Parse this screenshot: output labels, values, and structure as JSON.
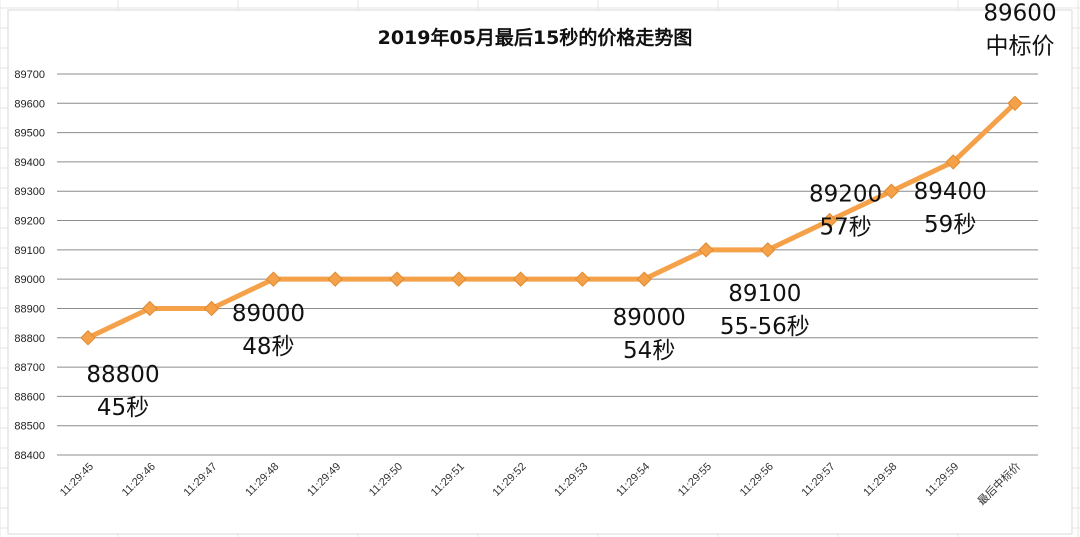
{
  "chart_data": {
    "type": "line",
    "title": "2019年05月最后15秒的价格走势图",
    "xlabel": "",
    "ylabel": "",
    "categories": [
      "11:29:45",
      "11:29:46",
      "11:29:47",
      "11:29:48",
      "11:29:49",
      "11:29:50",
      "11:29:51",
      "11:29:52",
      "11:29:53",
      "11:29:54",
      "11:29:55",
      "11:29:56",
      "11:29:57",
      "11:29:58",
      "11:29:59",
      "最后中标价"
    ],
    "series": [
      {
        "values": [
          88800,
          88900,
          88900,
          89000,
          89000,
          89000,
          89000,
          89000,
          89000,
          89000,
          89100,
          89100,
          89200,
          89300,
          89400,
          89600
        ]
      }
    ],
    "ylim": [
      88400,
      89700
    ],
    "ytick_labels": [
      "88400",
      "88500",
      "88600",
      "88700",
      "88800",
      "88900",
      "89000",
      "89100",
      "89200",
      "89300",
      "89400",
      "89500",
      "89600",
      "89700"
    ],
    "grid": true,
    "legend": "none",
    "line_color": "#F5A14A",
    "marker_color": "#F5A14A",
    "grid_color": "#8C8C8C",
    "annotations": [
      {
        "line1": "88800",
        "line2": "45秒",
        "category_index": 0,
        "value": 88800
      },
      {
        "line1": "89000",
        "line2": "48秒",
        "category_index": 3,
        "value": 89000
      },
      {
        "line1": "89000",
        "line2": "54秒",
        "category_index": 9,
        "value": 89000
      },
      {
        "line1": "89100",
        "line2": "55-56秒",
        "category_index": 11,
        "value": 89100
      },
      {
        "line1": "89200",
        "line2": "57秒",
        "category_index": 12,
        "value": 89200
      },
      {
        "line1": "89400",
        "line2": "59秒",
        "category_index": 14,
        "value": 89400
      },
      {
        "line1": "89600",
        "line2": "中标价",
        "category_index": 15,
        "value": 89600
      }
    ]
  }
}
